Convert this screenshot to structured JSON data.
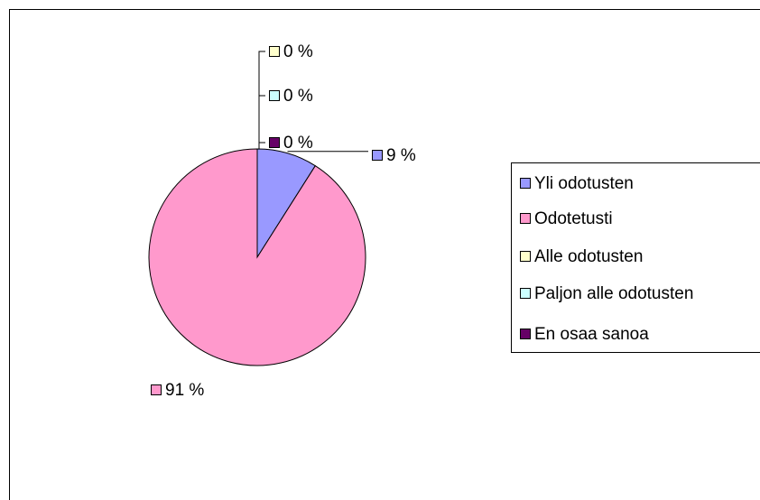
{
  "chart_data": {
    "type": "pie",
    "categories": [
      "Yli odotusten",
      "Odotetusti",
      "Alle odotusten",
      "Paljon alle odotusten",
      "En osaa sanoa"
    ],
    "values": [
      9,
      91,
      0,
      0,
      0
    ],
    "value_labels": [
      "9 %",
      "91 %",
      "0 %",
      "0 %",
      "0 %"
    ],
    "colors": [
      "#9999ff",
      "#ff99cc",
      "#ffffcc",
      "#ccffff",
      "#660066"
    ],
    "legend": "right"
  }
}
